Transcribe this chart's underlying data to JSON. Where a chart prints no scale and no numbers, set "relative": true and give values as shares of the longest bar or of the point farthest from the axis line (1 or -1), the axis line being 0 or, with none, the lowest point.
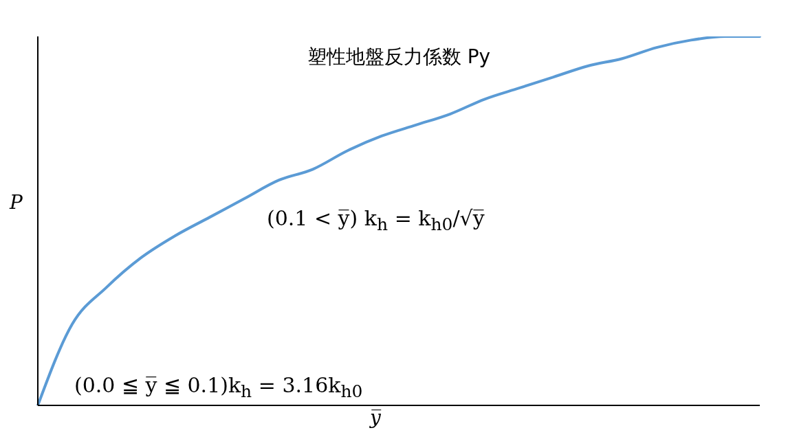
{
  "chart_data": {
    "type": "line",
    "relative": true,
    "title": "塑性地盤反力係数 Py",
    "xlabel": "y̅",
    "ylabel": "P",
    "categories": [
      null,
      null,
      null,
      null,
      null,
      null,
      null,
      null,
      null,
      null,
      null,
      null,
      null,
      null,
      null,
      null,
      null,
      null,
      null,
      null,
      null,
      null
    ],
    "series": [
      {
        "color": "#5b9bd5",
        "values": [
          0,
          0.22,
          0.32,
          0.4,
          0.46,
          0.51,
          0.56,
          0.61,
          0.64,
          0.69,
          0.73,
          0.76,
          0.79,
          0.83,
          0.86,
          0.89,
          0.92,
          0.94,
          0.97,
          0.99,
          1,
          1
        ]
      }
    ],
    "annotations": [
      "(0.1 < y̅)  k$_{h}$ = k$_{h0}$/√y̅",
      "(0.0 ≦ y̅ ≦ 0.1)k$_{h}$ = 3.16k$_{h0}$"
    ],
    "marker": "none",
    "line_style": "solid",
    "legend": false
  }
}
